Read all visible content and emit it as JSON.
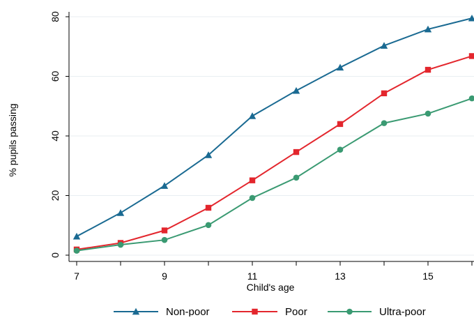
{
  "chart_data": {
    "type": "line",
    "title": "",
    "xlabel": "Child's age",
    "ylabel": "% pupils passing",
    "xlim": [
      7,
      16
    ],
    "ylim": [
      0,
      80
    ],
    "x": [
      7,
      8,
      9,
      10,
      11,
      12,
      13,
      14,
      15,
      16
    ],
    "x_ticks": [
      7,
      9,
      11,
      13,
      15
    ],
    "y_ticks": [
      0,
      20,
      40,
      60,
      80
    ],
    "grid": "horizontal",
    "legend_position": "bottom",
    "series": [
      {
        "name": "Non-poor",
        "color": "#1a6a92",
        "marker": "triangle",
        "values": [
          6.3,
          14.2,
          23.3,
          33.6,
          46.7,
          55.2,
          63.0,
          70.3,
          75.8,
          79.5
        ]
      },
      {
        "name": "Poor",
        "color": "#e3262d",
        "marker": "square",
        "values": [
          1.9,
          4.1,
          8.3,
          15.9,
          25.1,
          34.6,
          44.0,
          54.3,
          62.2,
          66.8
        ]
      },
      {
        "name": "Ultra-poor",
        "color": "#3a9a72",
        "marker": "circle",
        "values": [
          1.5,
          3.5,
          5.1,
          10.1,
          19.2,
          26.0,
          35.4,
          44.3,
          47.5,
          52.6
        ]
      }
    ]
  }
}
